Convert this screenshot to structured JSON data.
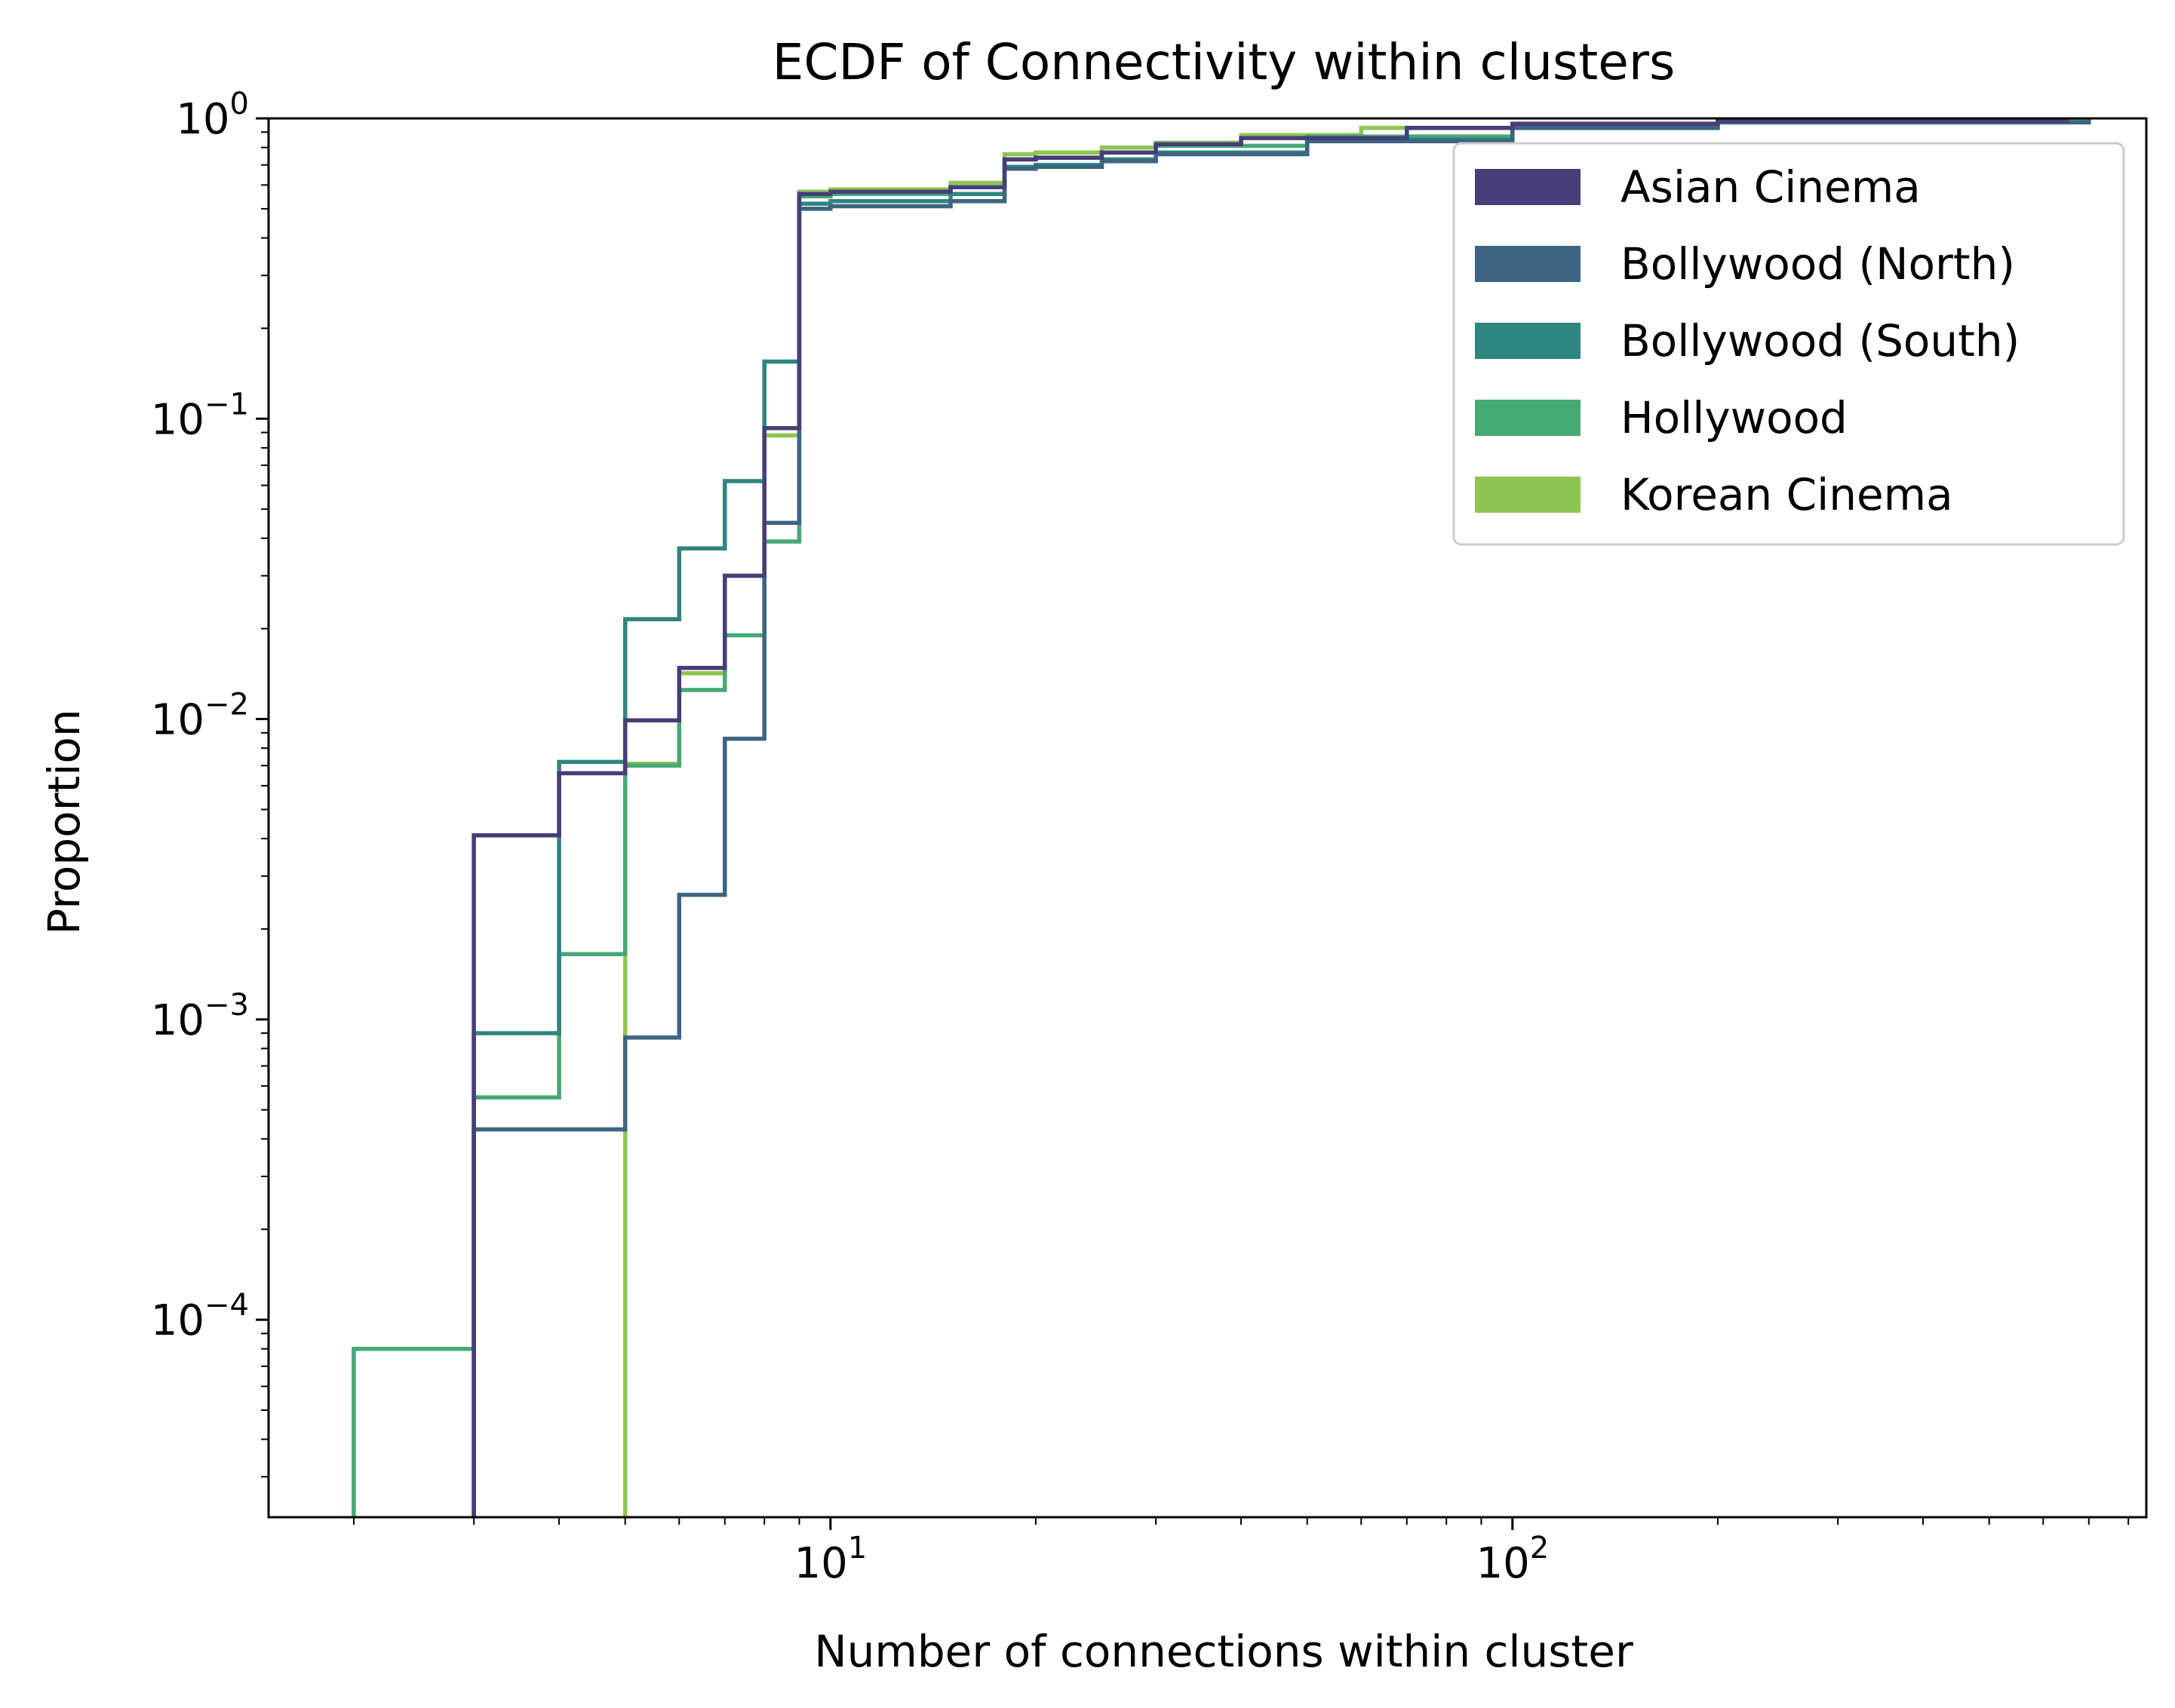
{
  "chart_data": {
    "type": "line",
    "title": "ECDF of Connectivity within clusters",
    "xlabel": "Number of connections within cluster",
    "ylabel": "Proportion",
    "xscale": "log",
    "yscale": "log",
    "xlim": [
      1.5,
      850
    ],
    "ylim": [
      2.2e-05,
      1
    ],
    "grid": false,
    "legend_position": "upper right",
    "x_ticks": [
      {
        "value": 10,
        "base": "10",
        "exp": "1"
      },
      {
        "value": 100,
        "base": "10",
        "exp": "2"
      }
    ],
    "y_ticks": [
      {
        "value": 1,
        "base": "10",
        "exp": "0"
      },
      {
        "value": 0.1,
        "base": "10",
        "exp": "−1"
      },
      {
        "value": 0.01,
        "base": "10",
        "exp": "−2"
      },
      {
        "value": 0.001,
        "base": "10",
        "exp": "−3"
      },
      {
        "value": 0.0001,
        "base": "10",
        "exp": "−4"
      }
    ],
    "series": [
      {
        "name": "Korean Cinema",
        "color": "#8fc553",
        "x": [
          5,
          6,
          7,
          8,
          9,
          10,
          15,
          18,
          20,
          25,
          30,
          40,
          60,
          100,
          200,
          600
        ],
        "y": [
          0.0071,
          0.0142,
          0.03,
          0.088,
          0.57,
          0.58,
          0.61,
          0.76,
          0.77,
          0.8,
          0.83,
          0.88,
          0.93,
          0.96,
          0.98,
          1.0
        ]
      },
      {
        "name": "Hollywood",
        "color": "#46a874",
        "x": [
          2,
          3,
          4,
          5,
          6,
          7,
          8,
          9,
          10,
          15,
          18,
          20,
          25,
          30,
          50,
          100,
          200,
          700
        ],
        "y": [
          8e-05,
          0.00055,
          0.00165,
          0.007,
          0.0125,
          0.019,
          0.039,
          0.55,
          0.56,
          0.59,
          0.73,
          0.74,
          0.77,
          0.81,
          0.87,
          0.94,
          0.98,
          1.0
        ]
      },
      {
        "name": "Bollywood (South)",
        "color": "#2f857f",
        "x": [
          3,
          4,
          5,
          6,
          7,
          8,
          9,
          10,
          15,
          18,
          20,
          25,
          30,
          50,
          100,
          200,
          700
        ],
        "y": [
          0.0009,
          0.0072,
          0.0215,
          0.037,
          0.062,
          0.155,
          0.52,
          0.53,
          0.56,
          0.69,
          0.7,
          0.73,
          0.77,
          0.85,
          0.93,
          0.97,
          1.0
        ]
      },
      {
        "name": "Bollywood (North)",
        "color": "#3d6581",
        "x": [
          3,
          5,
          6,
          7,
          8,
          9,
          10,
          15,
          18,
          20,
          25,
          30,
          50,
          100,
          200,
          700
        ],
        "y": [
          0.00043,
          0.00087,
          0.0026,
          0.0086,
          0.045,
          0.5,
          0.51,
          0.53,
          0.68,
          0.69,
          0.72,
          0.76,
          0.84,
          0.93,
          0.97,
          1.0
        ]
      },
      {
        "name": "Asian Cinema",
        "color": "#473e79",
        "x": [
          3,
          4,
          5,
          6,
          7,
          8,
          9,
          10,
          15,
          18,
          20,
          25,
          30,
          40,
          70,
          100,
          200,
          650
        ],
        "y": [
          0.0041,
          0.0066,
          0.0099,
          0.0148,
          0.03,
          0.093,
          0.56,
          0.57,
          0.59,
          0.73,
          0.74,
          0.77,
          0.82,
          0.86,
          0.93,
          0.96,
          0.98,
          1.0
        ]
      }
    ],
    "legend": [
      "Asian Cinema",
      "Bollywood (North)",
      "Bollywood (South)",
      "Hollywood",
      "Korean Cinema"
    ]
  }
}
